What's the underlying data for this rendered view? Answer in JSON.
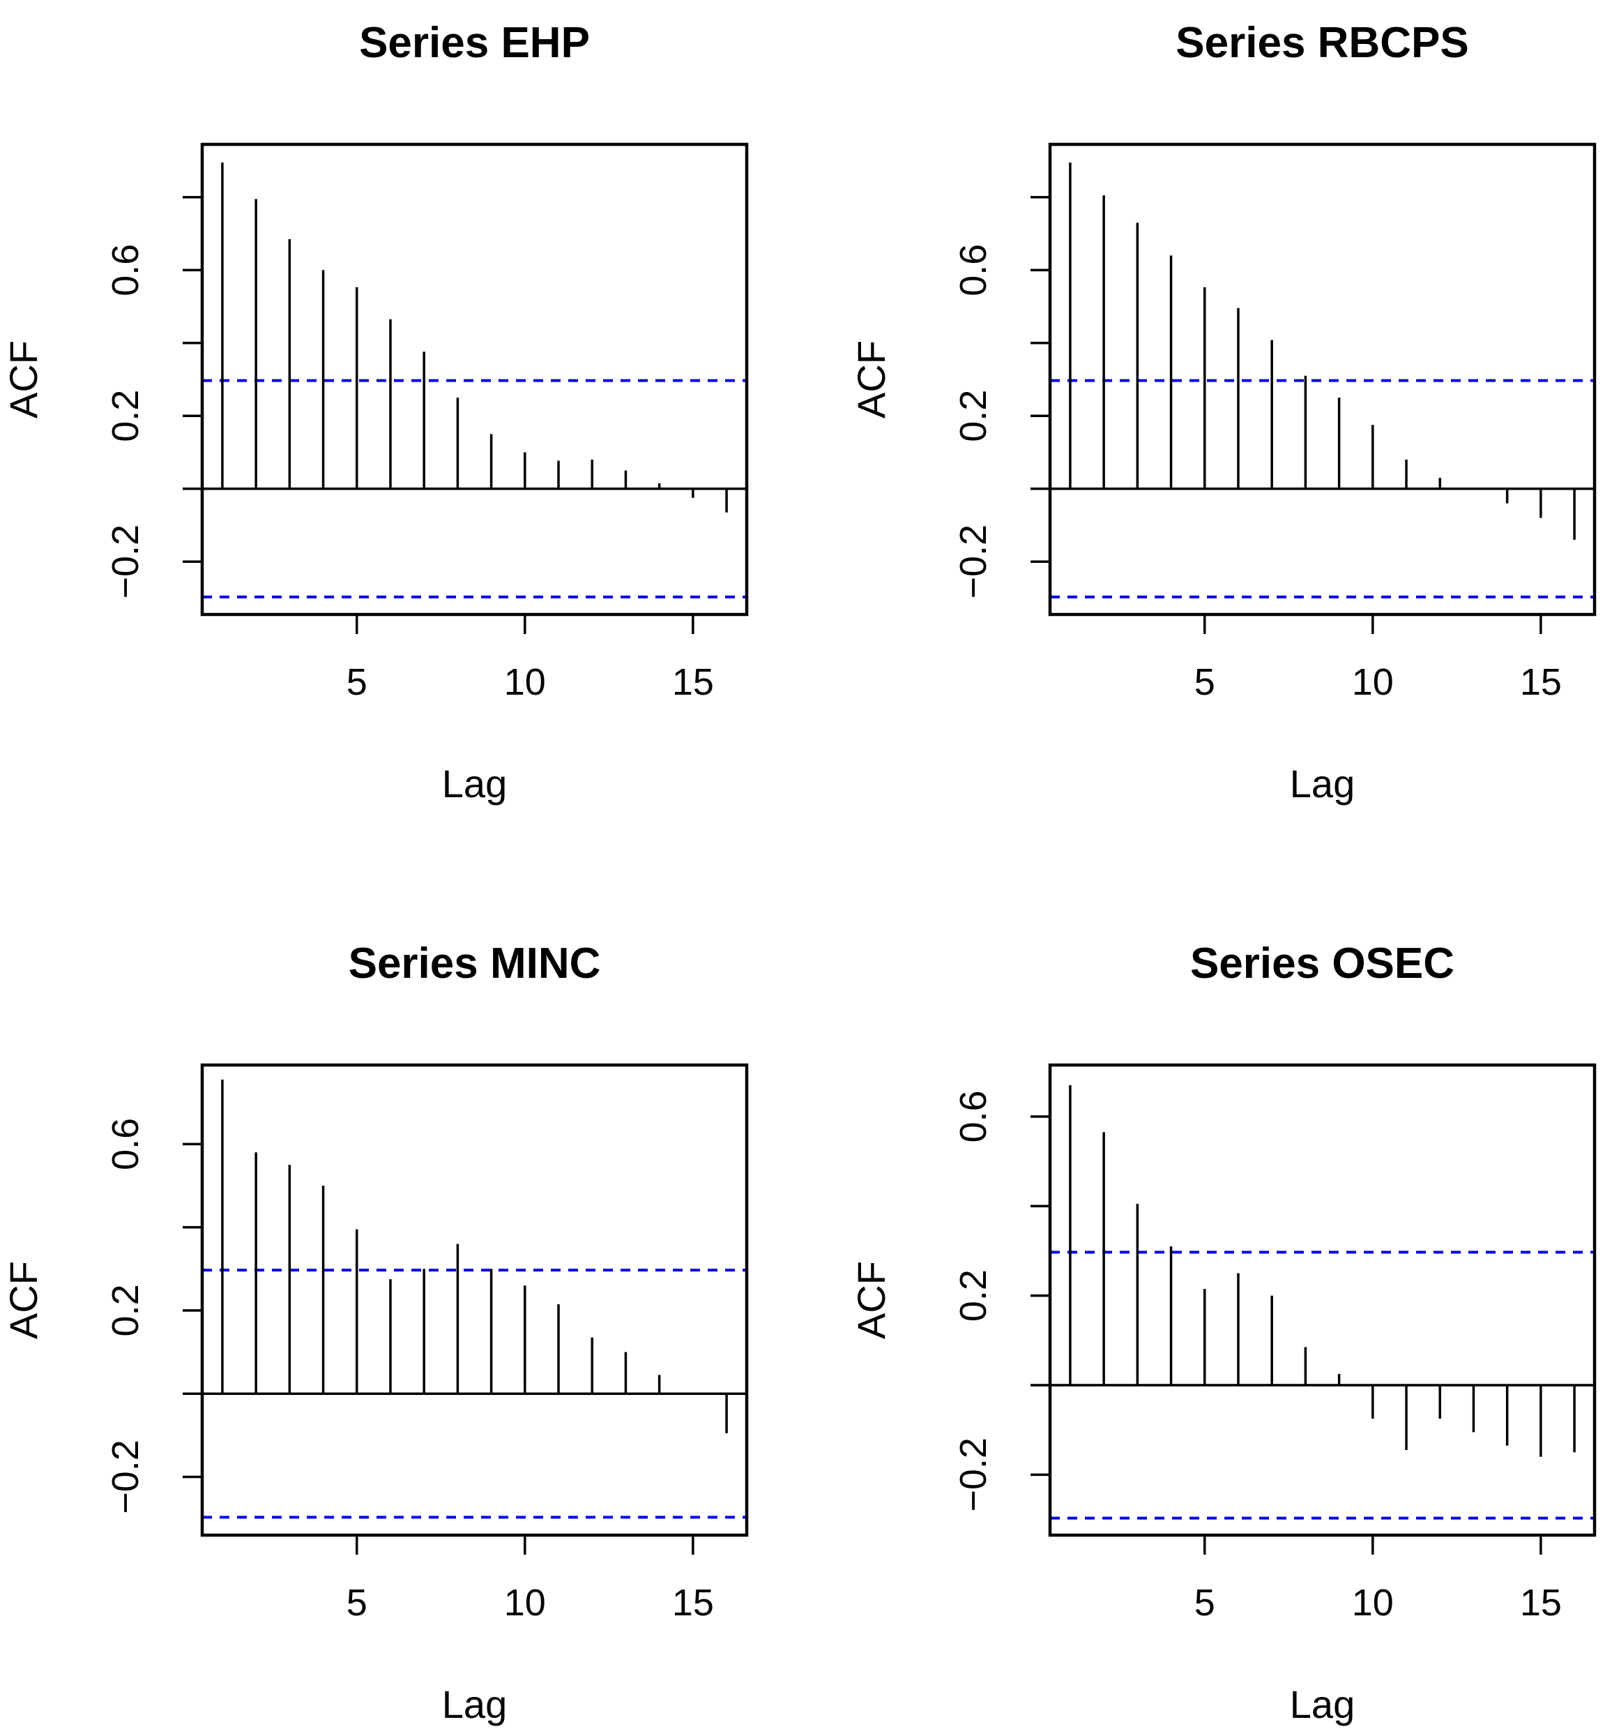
{
  "colors": {
    "ci_line": "#0000ee",
    "bars": "#000000"
  },
  "chart_data": [
    {
      "type": "bar",
      "title": "Series EHP",
      "xlabel": "Lag",
      "ylabel": "ACF",
      "xlim": [
        0.4,
        16.6
      ],
      "ylim": [
        -0.345,
        0.945
      ],
      "xticks": [
        5,
        10,
        15
      ],
      "xtick_labels": [
        "5",
        "10",
        "15"
      ],
      "yticks": [
        -0.2,
        0.0,
        0.2,
        0.4,
        0.6,
        0.8
      ],
      "ytick_labels": [
        "−0.2",
        "",
        "0.2",
        "",
        "0.6",
        ""
      ],
      "ci": [
        0.297,
        -0.297
      ],
      "lags": [
        1,
        2,
        3,
        4,
        5,
        6,
        7,
        8,
        9,
        10,
        11,
        12,
        13,
        14,
        15,
        16
      ],
      "values": [
        0.895,
        0.795,
        0.685,
        0.6,
        0.553,
        0.465,
        0.376,
        0.25,
        0.15,
        0.1,
        0.077,
        0.08,
        0.05,
        0.015,
        -0.025,
        -0.065
      ]
    },
    {
      "type": "bar",
      "title": "Series RBCPS",
      "xlabel": "Lag",
      "ylabel": "ACF",
      "xlim": [
        0.4,
        16.6
      ],
      "ylim": [
        -0.345,
        0.945
      ],
      "xticks": [
        5,
        10,
        15
      ],
      "xtick_labels": [
        "5",
        "10",
        "15"
      ],
      "yticks": [
        -0.2,
        0.0,
        0.2,
        0.4,
        0.6,
        0.8
      ],
      "ytick_labels": [
        "−0.2",
        "",
        "0.2",
        "",
        "0.6",
        ""
      ],
      "ci": [
        0.297,
        -0.297
      ],
      "lags": [
        1,
        2,
        3,
        4,
        5,
        6,
        7,
        8,
        9,
        10,
        11,
        12,
        13,
        14,
        15,
        16
      ],
      "values": [
        0.895,
        0.805,
        0.73,
        0.64,
        0.553,
        0.496,
        0.408,
        0.31,
        0.25,
        0.175,
        0.08,
        0.03,
        0.003,
        -0.04,
        -0.08,
        -0.14
      ]
    },
    {
      "type": "bar",
      "title": "Series MINC",
      "xlabel": "Lag",
      "ylabel": "ACF",
      "xlim": [
        0.4,
        16.6
      ],
      "ylim": [
        -0.34,
        0.79
      ],
      "xticks": [
        5,
        10,
        15
      ],
      "xtick_labels": [
        "5",
        "10",
        "15"
      ],
      "yticks": [
        -0.2,
        0.0,
        0.2,
        0.4,
        0.6
      ],
      "ytick_labels": [
        "−0.2",
        "",
        "0.2",
        "",
        "0.6"
      ],
      "ci": [
        0.297,
        -0.297
      ],
      "lags": [
        1,
        2,
        3,
        4,
        5,
        6,
        7,
        8,
        9,
        10,
        11,
        12,
        13,
        14,
        15,
        16
      ],
      "values": [
        0.755,
        0.58,
        0.55,
        0.5,
        0.395,
        0.275,
        0.3,
        0.36,
        0.3,
        0.26,
        0.215,
        0.135,
        0.1,
        0.045,
        0.0,
        -0.095
      ]
    },
    {
      "type": "bar",
      "title": "Series OSEC",
      "xlabel": "Lag",
      "ylabel": "ACF",
      "xlim": [
        0.4,
        16.6
      ],
      "ylim": [
        -0.335,
        0.715
      ],
      "xticks": [
        5,
        10,
        15
      ],
      "xtick_labels": [
        "5",
        "10",
        "15"
      ],
      "yticks": [
        -0.2,
        0.0,
        0.2,
        0.4,
        0.6
      ],
      "ytick_labels": [
        "−0.2",
        "",
        "0.2",
        "",
        "0.6"
      ],
      "ci": [
        0.297,
        -0.297
      ],
      "lags": [
        1,
        2,
        3,
        4,
        5,
        6,
        7,
        8,
        9,
        10,
        11,
        12,
        13,
        14,
        15,
        16
      ],
      "values": [
        0.67,
        0.565,
        0.405,
        0.31,
        0.215,
        0.25,
        0.2,
        0.085,
        0.025,
        -0.075,
        -0.145,
        -0.075,
        -0.105,
        -0.135,
        -0.16,
        -0.15
      ]
    }
  ]
}
